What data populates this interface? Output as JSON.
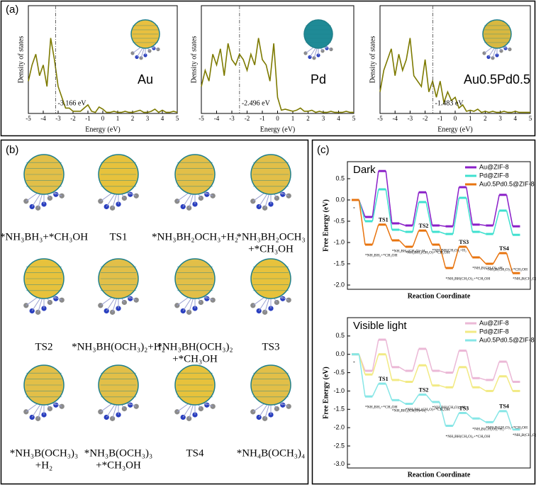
{
  "panel_labels": [
    "(a)",
    "(b)",
    "(c)"
  ],
  "structures": [
    {
      "label": [
        "*NH₃BH₃+*CH₃OH"
      ]
    },
    {
      "label": [
        "TS1"
      ]
    },
    {
      "label": [
        "*NH₃BH₂OCH₃+H₂"
      ]
    },
    {
      "label": [
        "*NH₃BH₂OCH₃",
        "+*CH₃OH"
      ]
    },
    {
      "label": [
        "TS2"
      ]
    },
    {
      "label": [
        "*NH₃BH(OCH₃)₂+H₂"
      ]
    },
    {
      "label": [
        "*NH₃BH(OCH₃)₂",
        "+*CH₃OH"
      ]
    },
    {
      "label": [
        "TS3"
      ]
    },
    {
      "label": [
        "*NH₃B(OCH₃)₃",
        "+H₂"
      ]
    },
    {
      "label": [
        "*NH₃B(OCH₃)₃",
        "+*CH₃OH"
      ]
    },
    {
      "label": [
        "TS4"
      ]
    },
    {
      "label": [
        "*NH₄B(OCH₃)₄"
      ]
    }
  ],
  "chart_data": [
    {
      "type": "line",
      "xlabel": "Energy (eV)",
      "ylabel": "Density of states",
      "annotation": "Au",
      "cluster_color": "#e8c040",
      "x": [
        -5,
        -4.75,
        -4.5,
        -4.25,
        -4,
        -3.75,
        -3.5,
        -3.25,
        -3,
        -2.75,
        -2.5,
        -2.25,
        -2,
        -1.75,
        -1.5,
        -1.25,
        -1,
        -0.75,
        -0.5,
        -0.25,
        0,
        0.25,
        0.5,
        0.75,
        1,
        1.25,
        1.5,
        1.75,
        2,
        2.25,
        2.5,
        2.75,
        3,
        3.25,
        3.5,
        3.75,
        4,
        4.25,
        4.5,
        4.75,
        5
      ],
      "series": [
        {
          "color": "#7d7a00",
          "values": [
            0.3,
            0.45,
            0.55,
            0.35,
            0.45,
            0.25,
            0.7,
            0.5,
            0.25,
            0.15,
            0.05,
            0.05,
            0.02,
            0.02,
            0.02,
            0.05,
            0.08,
            0.02,
            0.01,
            0.06,
            0.04,
            0.01,
            0.01,
            0.02,
            0.01,
            0.01,
            0.02,
            0.01,
            0.01,
            0.02,
            0.03,
            0.01,
            0.01,
            0.02,
            0.04,
            0.01,
            0.03,
            0.01,
            0.01,
            0.02,
            0.01
          ]
        }
      ],
      "xlim": [
        -5,
        5
      ],
      "xticks": [
        -5,
        -4,
        -3,
        -2,
        -1,
        0,
        1,
        2,
        3,
        4,
        5
      ],
      "ylim": [
        0,
        1
      ],
      "vline": {
        "value": -3.166,
        "label": "-3.166 eV"
      }
    },
    {
      "type": "line",
      "xlabel": "Energy (eV)",
      "ylabel": "Density of states",
      "annotation": "Pd",
      "cluster_color": "#1f8a96",
      "x": [
        -5,
        -4.75,
        -4.5,
        -4.25,
        -4,
        -3.75,
        -3.5,
        -3.25,
        -3,
        -2.75,
        -2.5,
        -2.25,
        -2,
        -1.75,
        -1.5,
        -1.25,
        -1,
        -0.75,
        -0.5,
        -0.25,
        0,
        0.25,
        0.5,
        0.75,
        1,
        1.25,
        1.5,
        1.75,
        2,
        2.25,
        2.5,
        2.75,
        3,
        3.25,
        3.5,
        3.75,
        4,
        4.25,
        4.5,
        4.75,
        5
      ],
      "series": [
        {
          "color": "#7d7a00",
          "values": [
            0.25,
            0.4,
            0.3,
            0.55,
            0.45,
            0.6,
            0.35,
            0.65,
            0.5,
            0.45,
            0.55,
            0.5,
            0.4,
            0.55,
            0.45,
            0.7,
            0.5,
            0.45,
            0.3,
            0.65,
            0.15,
            0.03,
            0.04,
            0.03,
            0.02,
            0.03,
            0.05,
            0.02,
            0.02,
            0.03,
            0.01,
            0.02,
            0.01,
            0.01,
            0.02,
            0.01,
            0.01,
            0.01,
            0.02,
            0.01,
            0.01
          ]
        }
      ],
      "xlim": [
        -5,
        5
      ],
      "xticks": [
        -5,
        -4,
        -3,
        -2,
        -1,
        0,
        1,
        2,
        3,
        4,
        5
      ],
      "ylim": [
        0,
        1
      ],
      "vline": {
        "value": -2.496,
        "label": "-2.496 eV"
      }
    },
    {
      "type": "line",
      "xlabel": "Energy (eV)",
      "ylabel": "Density of states",
      "annotation": "Au0.5Pd0.5",
      "cluster_color": "#d8b840",
      "x": [
        -5,
        -4.75,
        -4.5,
        -4.25,
        -4,
        -3.75,
        -3.5,
        -3.25,
        -3,
        -2.75,
        -2.5,
        -2.25,
        -2,
        -1.75,
        -1.5,
        -1.25,
        -1,
        -0.75,
        -0.5,
        -0.25,
        0,
        0.25,
        0.5,
        0.75,
        1,
        1.25,
        1.5,
        1.75,
        2,
        2.25,
        2.5,
        2.75,
        3,
        3.25,
        3.5,
        3.75,
        4,
        4.25,
        4.5,
        4.75,
        5
      ],
      "series": [
        {
          "color": "#7d7a00",
          "values": [
            0.2,
            0.4,
            0.5,
            0.6,
            0.35,
            0.55,
            0.4,
            0.5,
            0.7,
            0.35,
            0.3,
            0.25,
            0.5,
            0.2,
            0.3,
            0.15,
            0.3,
            0.1,
            0.2,
            0.12,
            0.15,
            0.05,
            0.08,
            0.02,
            0.03,
            0.02,
            0.04,
            0.01,
            0.02,
            0.01,
            0.02,
            0.01,
            0.01,
            0.02,
            0.01,
            0.01,
            0.02,
            0.01,
            0.01,
            0.01,
            0.01
          ]
        }
      ],
      "xlim": [
        -5,
        5
      ],
      "xticks": [
        -5,
        -4,
        -3,
        -2,
        -1,
        0,
        1,
        2,
        3,
        4,
        5
      ],
      "ylim": [
        0,
        1
      ],
      "vline": {
        "value": -1.483,
        "label": "-1.483 eV"
      }
    },
    {
      "type": "step",
      "title": "Dark",
      "xlabel": "Reaction Coordinate",
      "ylabel": "Free Energy (eV)",
      "legend": "upper right",
      "ylim": [
        -2.1,
        0.9
      ],
      "yticks": [
        0.5,
        {
          "value": 0,
          "label": "0.0"
        },
        -0.5,
        {
          "value": -1,
          "label": "-1.0"
        },
        -1.5,
        {
          "value": -2,
          "label": "-2.0"
        }
      ],
      "series": [
        {
          "name": "Au@ZIF-8",
          "color": "#8a1fc8",
          "values": [
            0,
            -0.4,
            0.68,
            -0.55,
            -0.6,
            0.18,
            -0.6,
            -0.62,
            0.3,
            -0.58,
            -0.6,
            0.12,
            -0.62
          ]
        },
        {
          "name": "Pd@ZIF-8",
          "color": "#3fe0cf",
          "values": [
            0,
            -0.5,
            0.25,
            -0.7,
            -0.75,
            -0.05,
            -0.75,
            -0.8,
            0.05,
            -0.75,
            -0.8,
            -0.25,
            -0.82
          ]
        },
        {
          "name": "Au0.5Pd0.5@ZIF-8",
          "color": "#e8740f",
          "values": [
            0,
            -1.05,
            -0.58,
            -0.95,
            -1.1,
            -0.72,
            -1.05,
            -1.6,
            -1.1,
            -1.35,
            -1.5,
            -1.25,
            -1.72
          ]
        }
      ],
      "state_labels": [
        "*",
        "*NH₃BH₃+*CH₃OH",
        "TS1",
        "*NH₃BH₂(CH₃O)+H₂",
        "*NH₃BH₂(CH₃O)+*CH₃OH",
        "TS2",
        "*NH₃BH(CH₃O)₂+H₂",
        "*NH₃BH(CH₃O)₂+*CH₃OH",
        "TS3",
        "*NH₃B(CH₃O)₃+H₂",
        "*NH₃B(CH₃O)₃+*CH₃OH",
        "TS4",
        "*NH₄B(CH₃O)₄"
      ]
    },
    {
      "type": "step",
      "title": "Visible light",
      "xlabel": "Reaction Coordinate",
      "ylabel": "Free Energy (eV)",
      "legend": "upper right",
      "ylim": [
        -3.1,
        1.0
      ],
      "yticks": [
        0.5,
        {
          "value": 0,
          "label": "0.0"
        },
        -0.5,
        {
          "value": -1,
          "label": "-1.0"
        },
        -1.5,
        {
          "value": -2,
          "label": "-2.0"
        },
        -2.5,
        {
          "value": -3,
          "label": "-3.0"
        }
      ],
      "series": [
        {
          "name": "Au@ZIF-8",
          "color": "#ebb8d6",
          "values": [
            0,
            -0.45,
            0.4,
            -0.35,
            -0.45,
            0.15,
            -0.45,
            -0.5,
            0.1,
            -0.65,
            -0.7,
            -0.2,
            -0.75
          ]
        },
        {
          "name": "Pd@ZIF-8",
          "color": "#f2ea84",
          "values": [
            0,
            -0.55,
            0,
            -0.7,
            -0.75,
            -0.3,
            -0.85,
            -0.9,
            -0.35,
            -0.9,
            -1,
            -0.6,
            -1
          ]
        },
        {
          "name": "Au0.5Pd0.5@ZIF-8",
          "color": "#86e6e6",
          "values": [
            0,
            -1.15,
            -0.8,
            -1.25,
            -1.35,
            -1.1,
            -1.3,
            -1.95,
            -1.6,
            -1.75,
            -1.85,
            -1.55,
            -2.05
          ]
        }
      ],
      "state_labels": [
        "*",
        "*NH₃BH₃+*CH₃OH",
        "TS1",
        "*NH₃BH₂(CH₃O)+H₂",
        "*NH₃BH₂(CH₃O)+*CH₃OH",
        "TS2",
        "*NH₃BH(CH₃O)₂+H₂",
        "*NH₃BH(CH₃O)₂+*CH₃OH",
        "TS3",
        "*NH₃B(CH₃O)₃+H₂",
        "*NH₃B(CH₃O)₃+*CH₃OH",
        "TS4",
        "*NH₄B(CH₃O)₄"
      ]
    }
  ]
}
